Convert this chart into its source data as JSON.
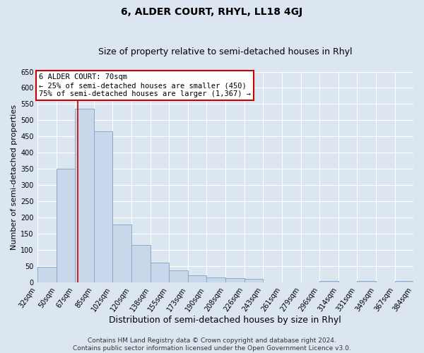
{
  "title": "6, ALDER COURT, RHYL, LL18 4GJ",
  "subtitle": "Size of property relative to semi-detached houses in Rhyl",
  "xlabel": "Distribution of semi-detached houses by size in Rhyl",
  "ylabel": "Number of semi-detached properties",
  "bar_edges": [
    32,
    50,
    67,
    85,
    102,
    120,
    138,
    155,
    173,
    190,
    208,
    226,
    243,
    261,
    279,
    296,
    314,
    331,
    349,
    367,
    384
  ],
  "bar_heights": [
    47,
    350,
    535,
    465,
    178,
    115,
    62,
    37,
    22,
    15,
    14,
    10,
    0,
    0,
    0,
    4,
    0,
    4,
    0,
    4
  ],
  "bar_color": "#c8d8ea",
  "bar_edgecolor": "#88aac8",
  "vline_x": 70,
  "vline_color": "#cc0000",
  "ylim": [
    0,
    650
  ],
  "yticks": [
    0,
    50,
    100,
    150,
    200,
    250,
    300,
    350,
    400,
    450,
    500,
    550,
    600,
    650
  ],
  "tick_labels": [
    "32sqm",
    "50sqm",
    "67sqm",
    "85sqm",
    "102sqm",
    "120sqm",
    "138sqm",
    "155sqm",
    "173sqm",
    "190sqm",
    "208sqm",
    "226sqm",
    "243sqm",
    "261sqm",
    "279sqm",
    "296sqm",
    "314sqm",
    "331sqm",
    "349sqm",
    "367sqm",
    "384sqm"
  ],
  "annotation_title": "6 ALDER COURT: 70sqm",
  "annotation_line1": "← 25% of semi-detached houses are smaller (450)",
  "annotation_line2": "75% of semi-detached houses are larger (1,367) →",
  "annotation_box_color": "#ffffff",
  "annotation_box_edgecolor": "#cc0000",
  "footer1": "Contains HM Land Registry data © Crown copyright and database right 2024.",
  "footer2": "Contains public sector information licensed under the Open Government Licence v3.0.",
  "background_color": "#dce6f0",
  "grid_color": "#ffffff",
  "title_fontsize": 10,
  "subtitle_fontsize": 9,
  "xlabel_fontsize": 9,
  "ylabel_fontsize": 8,
  "tick_fontsize": 7,
  "annotation_fontsize": 7.5,
  "footer_fontsize": 6.5
}
